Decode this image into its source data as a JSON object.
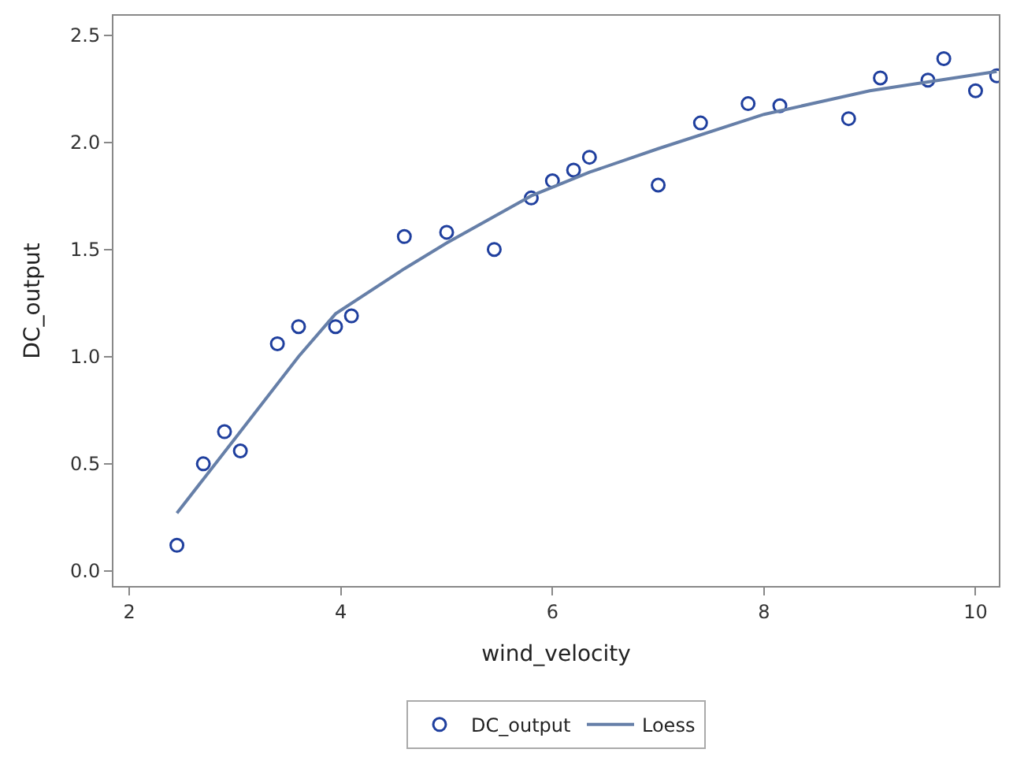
{
  "chart_data": {
    "type": "scatter",
    "xlabel": "wind_velocity",
    "ylabel": "DC_output",
    "xlim": [
      1.85,
      10.22
    ],
    "xticks": [
      2,
      4,
      6,
      8,
      10
    ],
    "ylim": [
      -0.07,
      2.59
    ],
    "yticks": [
      {
        "value": 0,
        "label": "0.0"
      },
      {
        "value": 0.5,
        "label": "0.5"
      },
      {
        "value": 1,
        "label": "1.0"
      },
      {
        "value": 1.5,
        "label": "1.5"
      },
      {
        "value": 2,
        "label": "2.0"
      },
      {
        "value": 2.5,
        "label": "2.5"
      }
    ],
    "legend": "bottom",
    "series": [
      {
        "name": "DC_output",
        "marker": "circle",
        "color": "#1f3f9e",
        "x": [
          2.45,
          2.7,
          2.9,
          3.05,
          3.4,
          3.6,
          3.95,
          4.1,
          4.6,
          5.0,
          5.45,
          5.8,
          6.0,
          6.2,
          6.35,
          7.0,
          7.4,
          7.85,
          8.15,
          8.8,
          9.1,
          9.55,
          9.7,
          10.0,
          10.2
        ],
        "values": [
          0.12,
          0.5,
          0.65,
          0.56,
          1.06,
          1.14,
          1.14,
          1.19,
          1.56,
          1.58,
          1.5,
          1.74,
          1.82,
          1.87,
          1.93,
          1.8,
          2.09,
          2.18,
          2.17,
          2.11,
          2.3,
          2.29,
          2.39,
          2.24,
          2.31
        ]
      },
      {
        "name": "Loess",
        "type": "line",
        "marker": "none",
        "line_style": "solid",
        "color": "#667fa8",
        "x": [
          2.45,
          3.05,
          3.6,
          3.95,
          4.6,
          5.0,
          5.8,
          6.35,
          7.0,
          8.0,
          9.0,
          10.2
        ],
        "values": [
          0.27,
          0.65,
          1.0,
          1.2,
          1.41,
          1.53,
          1.75,
          1.86,
          1.97,
          2.13,
          2.24,
          2.33
        ]
      }
    ]
  }
}
